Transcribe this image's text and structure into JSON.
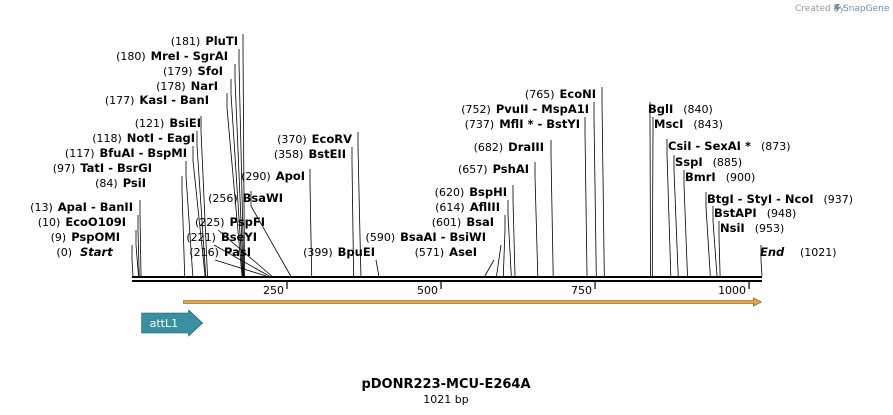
{
  "credit": {
    "prefix": "Created by",
    "brand": "SnapGene",
    "brand_color": "#6f8fa7"
  },
  "plasmid": {
    "name": "pDONR223-MCU-E264A",
    "length_label": "1021 bp",
    "length_bp": 1021
  },
  "ruler": {
    "ticks": [
      {
        "bp": 250,
        "label": "250"
      },
      {
        "bp": 500,
        "label": "500"
      },
      {
        "bp": 750,
        "label": "750"
      },
      {
        "bp": 1000,
        "label": "1000"
      }
    ]
  },
  "orf": {
    "start_bp": 82,
    "end_bp": 1020,
    "color": "#e8a33a"
  },
  "feature": {
    "name": "attL1",
    "start_bp": 14,
    "end_bp": 113,
    "color": "#3a8fa0"
  },
  "sites": [
    {
      "id": "start",
      "pos_label": "(0)",
      "name": "Start",
      "bp": 0,
      "italic": true
    },
    {
      "id": "pspomi",
      "pos_label": "(9)",
      "name": "PspOMI",
      "bp": 9
    },
    {
      "id": "ecoo109i",
      "pos_label": "(10)",
      "name": "EcoO109I",
      "bp": 10
    },
    {
      "id": "apai",
      "pos_label": "(13)",
      "name": "ApaI  - BanII",
      "bp": 13
    },
    {
      "id": "psii",
      "pos_label": "(84)",
      "name": "PsiI",
      "bp": 84
    },
    {
      "id": "tati",
      "pos_label": "(97)",
      "name": "TatI  - BsrGI",
      "bp": 97
    },
    {
      "id": "bfuai",
      "pos_label": "(117)",
      "name": "BfuAI  - BspMI",
      "bp": 117
    },
    {
      "id": "noti",
      "pos_label": "(118)",
      "name": "NotI  - EagI",
      "bp": 118
    },
    {
      "id": "bsiei",
      "pos_label": "(121)",
      "name": "BsiEI",
      "bp": 121
    },
    {
      "id": "kasi",
      "pos_label": "(177)",
      "name": "KasI  - BanI",
      "bp": 177
    },
    {
      "id": "nari",
      "pos_label": "(178)",
      "name": "NarI",
      "bp": 178
    },
    {
      "id": "sfoi",
      "pos_label": "(179)",
      "name": "SfoI",
      "bp": 179
    },
    {
      "id": "mrei",
      "pos_label": "(180)",
      "name": "MreI  - SgrAI",
      "bp": 180
    },
    {
      "id": "pluti",
      "pos_label": "(181)",
      "name": "PluTI",
      "bp": 181
    },
    {
      "id": "pasi",
      "pos_label": "(216)",
      "name": "PasI",
      "bp": 216
    },
    {
      "id": "bseyi",
      "pos_label": "(221)",
      "name": "BseYI",
      "bp": 221
    },
    {
      "id": "pspfi",
      "pos_label": "(225)",
      "name": "PspFI",
      "bp": 225
    },
    {
      "id": "bsawi",
      "pos_label": "(256)",
      "name": "BsaWI",
      "bp": 256
    },
    {
      "id": "apoi",
      "pos_label": "(290)",
      "name": "ApoI",
      "bp": 290
    },
    {
      "id": "bsteii",
      "pos_label": "(358)",
      "name": "BstEII",
      "bp": 358
    },
    {
      "id": "ecorv",
      "pos_label": "(370)",
      "name": "EcoRV",
      "bp": 370
    },
    {
      "id": "bpuei",
      "pos_label": "(399)",
      "name": "BpuEI",
      "bp": 399
    },
    {
      "id": "asei",
      "pos_label": "(571)",
      "name": "AseI",
      "bp": 571
    },
    {
      "id": "bsaai",
      "pos_label": "(590)",
      "name": "BsaAI  - BsiWI",
      "bp": 590
    },
    {
      "id": "bsai",
      "pos_label": "(601)",
      "name": "BsaI",
      "bp": 601
    },
    {
      "id": "afliii",
      "pos_label": "(614)",
      "name": "AflIII",
      "bp": 614
    },
    {
      "id": "bsphi",
      "pos_label": "(620)",
      "name": "BspHI",
      "bp": 620
    },
    {
      "id": "pshai",
      "pos_label": "(657)",
      "name": "PshAI",
      "bp": 657
    },
    {
      "id": "draiii",
      "pos_label": "(682)",
      "name": "DraIII",
      "bp": 682
    },
    {
      "id": "mfli",
      "pos_label": "(737)",
      "name": "MflI *  - BstYI",
      "bp": 737
    },
    {
      "id": "pvuii",
      "pos_label": "(752)",
      "name": "PvuII  - MspA1I",
      "bp": 752
    },
    {
      "id": "econi",
      "pos_label": "(765)",
      "name": "EcoNI",
      "bp": 765
    },
    {
      "id": "bgli",
      "pos_label": "(840)",
      "name": "BglI",
      "bp": 840
    },
    {
      "id": "msci",
      "pos_label": "(843)",
      "name": "MscI",
      "bp": 843
    },
    {
      "id": "csii",
      "pos_label": "(873)",
      "name": "CsiI  - SexAI *",
      "bp": 873
    },
    {
      "id": "sspi",
      "pos_label": "(885)",
      "name": "SspI",
      "bp": 885
    },
    {
      "id": "bmri",
      "pos_label": "(900)",
      "name": "BmrI",
      "bp": 900
    },
    {
      "id": "btgi",
      "pos_label": "(937)",
      "name": "BtgI  - StyI  - NcoI",
      "bp": 937
    },
    {
      "id": "bstapi",
      "pos_label": "(948)",
      "name": "BstAPI",
      "bp": 948
    },
    {
      "id": "nsii",
      "pos_label": "(953)",
      "name": "NsiI",
      "bp": 953
    },
    {
      "id": "end",
      "pos_label": "(1021)",
      "name": "End",
      "bp": 1021,
      "italic": true
    }
  ]
}
